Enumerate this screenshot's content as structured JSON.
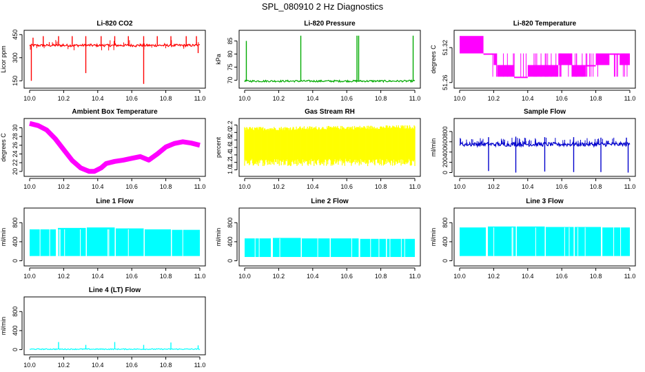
{
  "page": {
    "title": "SPL_080910  2 Hz Diagnostics"
  },
  "chart_data": [
    {
      "id": "co2",
      "type": "line",
      "title": "Li-820 CO2",
      "xlabel": "",
      "ylabel": "Licor ppm",
      "color": "#ff0000",
      "xlim": [
        10.0,
        11.0
      ],
      "ylim": [
        120,
        460
      ],
      "xticks": [
        "10.0",
        "10.2",
        "10.4",
        "10.6",
        "10.8",
        "11.0"
      ],
      "yticks": [
        "150",
        "300",
        "450"
      ],
      "yticks_values": [
        150,
        300,
        450
      ],
      "series": [
        {
          "x": [
            10.0,
            11.0
          ],
          "y": [
            380,
            380
          ]
        }
      ],
      "baseline": 380,
      "band": [
        372,
        388
      ],
      "spikes_up": [
        {
          "x": 10.02,
          "y": 430
        },
        {
          "x": 10.08,
          "y": 440
        },
        {
          "x": 10.17,
          "y": 440
        },
        {
          "x": 10.25,
          "y": 440
        },
        {
          "x": 10.33,
          "y": 440
        },
        {
          "x": 10.42,
          "y": 440
        },
        {
          "x": 10.5,
          "y": 440
        },
        {
          "x": 10.58,
          "y": 440
        },
        {
          "x": 10.67,
          "y": 440
        },
        {
          "x": 10.75,
          "y": 440
        },
        {
          "x": 10.83,
          "y": 440
        },
        {
          "x": 10.92,
          "y": 440
        },
        {
          "x": 10.98,
          "y": 440
        }
      ],
      "spikes_down": [
        {
          "x": 10.01,
          "y": 150
        },
        {
          "x": 10.33,
          "y": 200
        },
        {
          "x": 10.67,
          "y": 130
        },
        {
          "x": 10.99,
          "y": 330
        }
      ]
    },
    {
      "id": "pressure",
      "type": "line",
      "title": "Li-820 Pressure",
      "xlabel": "",
      "ylabel": "kPa",
      "color": "#00aa00",
      "xlim": [
        10.0,
        11.0
      ],
      "ylim": [
        68,
        88
      ],
      "xticks": [
        "10.0",
        "10.2",
        "10.4",
        "10.6",
        "10.8",
        "11.0"
      ],
      "yticks": [
        "70",
        "75",
        "80",
        "85"
      ],
      "yticks_values": [
        70,
        75,
        80,
        85
      ],
      "baseline": 69.6,
      "band": [
        69.3,
        70.0
      ],
      "spikes_up": [
        {
          "x": 10.01,
          "y": 85
        },
        {
          "x": 10.33,
          "y": 87
        },
        {
          "x": 10.66,
          "y": 87
        },
        {
          "x": 10.67,
          "y": 87
        },
        {
          "x": 10.99,
          "y": 87
        }
      ],
      "spikes_down": []
    },
    {
      "id": "temperature",
      "type": "step",
      "title": "Li-820 Temperature",
      "xlabel": "",
      "ylabel": "degrees C",
      "color": "#ff00ff",
      "xlim": [
        10.0,
        11.0
      ],
      "ylim": [
        51.255,
        51.345
      ],
      "xticks": [
        "10.0",
        "10.2",
        "10.4",
        "10.6",
        "10.8",
        "11.0"
      ],
      "yticks": [
        "51.26",
        "51.32"
      ],
      "yticks_values": [
        51.26,
        51.32
      ],
      "levels": [
        {
          "x0": 10.0,
          "x1": 10.14,
          "lo": 51.31,
          "hi": 51.34
        },
        {
          "x0": 10.14,
          "x1": 10.2,
          "lo": 51.31,
          "hi": 51.31
        },
        {
          "x0": 10.2,
          "x1": 10.22,
          "lo": 51.29,
          "hi": 51.31
        },
        {
          "x0": 10.22,
          "x1": 10.32,
          "lo": 51.27,
          "hi": 51.29
        },
        {
          "x0": 10.32,
          "x1": 10.4,
          "lo": 51.27,
          "hi": 51.27
        },
        {
          "x0": 10.4,
          "x1": 10.58,
          "lo": 51.27,
          "hi": 51.29
        },
        {
          "x0": 10.58,
          "x1": 10.66,
          "lo": 51.29,
          "hi": 51.31
        },
        {
          "x0": 10.66,
          "x1": 10.74,
          "lo": 51.27,
          "hi": 51.29
        },
        {
          "x0": 10.74,
          "x1": 10.8,
          "lo": 51.29,
          "hi": 51.29
        },
        {
          "x0": 10.8,
          "x1": 10.88,
          "lo": 51.29,
          "hi": 51.31
        },
        {
          "x0": 10.88,
          "x1": 10.94,
          "lo": 51.31,
          "hi": 51.31
        },
        {
          "x0": 10.94,
          "x1": 11.0,
          "lo": 51.29,
          "hi": 51.31
        }
      ]
    },
    {
      "id": "ambient",
      "type": "line",
      "title": "Ambient Box Temperature",
      "xlabel": "",
      "ylabel": "degrees C",
      "color": "#ff00ff",
      "xlim": [
        10.0,
        11.0
      ],
      "ylim": [
        19.5,
        31.5
      ],
      "xticks": [
        "10.0",
        "10.2",
        "10.4",
        "10.6",
        "10.8",
        "11.0"
      ],
      "yticks": [
        "20",
        "22",
        "24",
        "26",
        "28",
        "30"
      ],
      "yticks_values": [
        20,
        22,
        24,
        26,
        28,
        30
      ],
      "series": [
        {
          "x": [
            10.0,
            10.05,
            10.1,
            10.15,
            10.2,
            10.25,
            10.3,
            10.35,
            10.38,
            10.42,
            10.45,
            10.5,
            10.55,
            10.6,
            10.65,
            10.7,
            10.75,
            10.8,
            10.85,
            10.9,
            10.95,
            11.0
          ],
          "y": [
            31.0,
            30.5,
            29.5,
            27.5,
            25.0,
            22.5,
            20.8,
            20.0,
            20.0,
            20.8,
            21.8,
            22.3,
            22.6,
            23.0,
            23.4,
            22.6,
            24.0,
            25.6,
            26.4,
            26.8,
            26.5,
            26.0
          ]
        }
      ],
      "band_width": 0.6
    },
    {
      "id": "rh",
      "type": "line",
      "title": "Gas Stream RH",
      "xlabel": "",
      "ylabel": "percent",
      "color": "#ffff00",
      "xlim": [
        10.0,
        11.0
      ],
      "ylim": [
        0.9,
        2.3
      ],
      "xticks": [
        "10.0",
        "10.2",
        "10.4",
        "10.6",
        "10.8",
        "11.0"
      ],
      "yticks": [
        "1.0",
        "1.2",
        "1.4",
        "1.6",
        "1.8",
        "2.0",
        "2.2"
      ],
      "yticks_values": [
        1.0,
        1.2,
        1.4,
        1.6,
        1.8,
        2.0,
        2.2
      ],
      "band_top": [
        2.05,
        2.15
      ],
      "band_bottom": [
        1.1,
        1.3
      ]
    },
    {
      "id": "sample",
      "type": "line",
      "title": "Sample Flow",
      "xlabel": "",
      "ylabel": "ml/min",
      "color": "#0000cc",
      "xlim": [
        10.0,
        11.0
      ],
      "ylim": [
        -20,
        1000
      ],
      "xticks": [
        "10.0",
        "10.2",
        "10.4",
        "10.6",
        "10.8",
        "11.0"
      ],
      "yticks": [
        "0",
        "200",
        "400",
        "600",
        "800"
      ],
      "yticks_values": [
        0,
        200,
        400,
        600,
        800
      ],
      "baseline": 550,
      "band": [
        510,
        590
      ],
      "spikes_up": [
        {
          "x": 10.17,
          "y": 690
        },
        {
          "x": 10.33,
          "y": 700
        },
        {
          "x": 10.5,
          "y": 690
        },
        {
          "x": 10.67,
          "y": 690
        },
        {
          "x": 10.83,
          "y": 680
        },
        {
          "x": 10.98,
          "y": 680
        }
      ],
      "spikes_down": [
        {
          "x": 10.17,
          "y": 30
        },
        {
          "x": 10.33,
          "y": 0
        },
        {
          "x": 10.5,
          "y": 20
        },
        {
          "x": 10.67,
          "y": 10
        },
        {
          "x": 10.83,
          "y": 10
        },
        {
          "x": 10.99,
          "y": 0
        }
      ]
    },
    {
      "id": "line1",
      "type": "line",
      "title": "Line 1 Flow",
      "xlabel": "",
      "ylabel": "ml/min",
      "color": "#00ffff",
      "xlim": [
        10.0,
        11.0
      ],
      "ylim": [
        -50,
        1050
      ],
      "xticks": [
        "10.0",
        "10.2",
        "10.4",
        "10.6",
        "10.8",
        "11.0"
      ],
      "yticks": [
        "0",
        "400",
        "800"
      ],
      "yticks_values": [
        0,
        400,
        800
      ],
      "segments": [
        {
          "x0": 10.0,
          "x1": 10.16,
          "hi": 660
        },
        {
          "x0": 10.16,
          "x1": 10.33,
          "hi": 690
        },
        {
          "x0": 10.33,
          "x1": 10.5,
          "hi": 700
        },
        {
          "x0": 10.5,
          "x1": 10.67,
          "hi": 680
        },
        {
          "x0": 10.67,
          "x1": 10.83,
          "hi": 660
        },
        {
          "x0": 10.83,
          "x1": 11.0,
          "hi": 650
        }
      ],
      "low": 100
    },
    {
      "id": "line2",
      "type": "line",
      "title": "Line 2 Flow",
      "xlabel": "",
      "ylabel": "ml/min",
      "color": "#00ffff",
      "xlim": [
        10.0,
        11.0
      ],
      "ylim": [
        -50,
        1050
      ],
      "xticks": [
        "10.0",
        "10.2",
        "10.4",
        "10.6",
        "10.8",
        "11.0"
      ],
      "yticks": [
        "0",
        "400",
        "800"
      ],
      "yticks_values": [
        0,
        400,
        800
      ],
      "segments": [
        {
          "x0": 10.0,
          "x1": 10.16,
          "hi": 470
        },
        {
          "x0": 10.16,
          "x1": 10.33,
          "hi": 480
        },
        {
          "x0": 10.33,
          "x1": 10.5,
          "hi": 470
        },
        {
          "x0": 10.5,
          "x1": 10.67,
          "hi": 470
        },
        {
          "x0": 10.67,
          "x1": 10.83,
          "hi": 460
        },
        {
          "x0": 10.83,
          "x1": 11.0,
          "hi": 460
        }
      ],
      "low": 80
    },
    {
      "id": "line3",
      "type": "line",
      "title": "Line 3 Flow",
      "xlabel": "",
      "ylabel": "ml/min",
      "color": "#00ffff",
      "xlim": [
        10.0,
        11.0
      ],
      "ylim": [
        -50,
        1050
      ],
      "xticks": [
        "10.0",
        "10.2",
        "10.4",
        "10.6",
        "10.8",
        "11.0"
      ],
      "yticks": [
        "0",
        "400",
        "800"
      ],
      "yticks_values": [
        0,
        400,
        800
      ],
      "segments": [
        {
          "x0": 10.0,
          "x1": 10.16,
          "hi": 700
        },
        {
          "x0": 10.16,
          "x1": 10.33,
          "hi": 720
        },
        {
          "x0": 10.33,
          "x1": 10.5,
          "hi": 720
        },
        {
          "x0": 10.5,
          "x1": 10.67,
          "hi": 710
        },
        {
          "x0": 10.67,
          "x1": 10.83,
          "hi": 710
        },
        {
          "x0": 10.83,
          "x1": 11.0,
          "hi": 700
        }
      ],
      "low": 100
    },
    {
      "id": "line4",
      "type": "line",
      "title": "Line 4 (LT) Flow",
      "xlabel": "",
      "ylabel": "ml/min",
      "color": "#00ffff",
      "xlim": [
        10.0,
        11.0
      ],
      "ylim": [
        -50,
        1050
      ],
      "xticks": [
        "10.0",
        "10.2",
        "10.4",
        "10.6",
        "10.8",
        "11.0"
      ],
      "yticks": [
        "0",
        "400",
        "800"
      ],
      "yticks_values": [
        0,
        400,
        800
      ],
      "baseline": 10,
      "band": [
        0,
        20
      ],
      "spikes_up": [
        {
          "x": 10.17,
          "y": 160
        },
        {
          "x": 10.33,
          "y": 100
        },
        {
          "x": 10.5,
          "y": 160
        },
        {
          "x": 10.67,
          "y": 100
        },
        {
          "x": 10.83,
          "y": 150
        },
        {
          "x": 10.99,
          "y": 90
        }
      ],
      "spikes_down": []
    }
  ]
}
